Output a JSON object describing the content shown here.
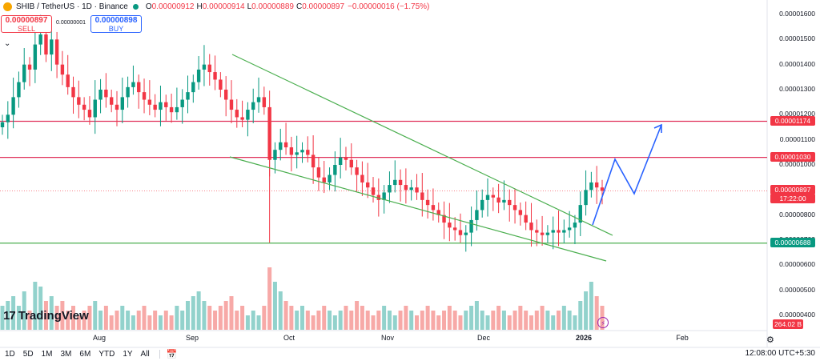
{
  "header": {
    "symbol": "SHIB / TetherUS · 1D · Binance",
    "open_label": "O",
    "open": "0.00000912",
    "high_label": "H",
    "high": "0.00000914",
    "low_label": "L",
    "low": "0.00000889",
    "close_label": "C",
    "close": "0.00000897",
    "change": "−0.00000016 (−1.75%)"
  },
  "trade": {
    "sell_price": "0.00000897",
    "sell_label": "SELL",
    "buy_price": "0.00000898",
    "buy_label": "BUY",
    "spread": "0.00000001"
  },
  "tags": {
    "resistance_high": "0.00001174",
    "resistance_low": "0.00001030",
    "current_price": "0.00000897",
    "countdown": "17:22:00",
    "support": "0.00000688",
    "volume": "264.02 B"
  },
  "brand": {
    "logo_text": "TradingView"
  },
  "timeframes": [
    "1D",
    "5D",
    "1M",
    "3M",
    "6M",
    "YTD",
    "1Y",
    "All"
  ],
  "clock": "12:08:00 UTC+5:30",
  "colors": {
    "up": "#089981",
    "down": "#f23645",
    "up_volume": "#92d2cc",
    "down_volume": "#f7a9a7",
    "resistance": "#e0315a",
    "support": "#4caf50",
    "wedge": "#4caf50",
    "projection": "#2962ff"
  },
  "chart_data": {
    "type": "candlestick",
    "y_axis_ticks": [
      "0.00001600",
      "0.00001500",
      "0.00001400",
      "0.00001300",
      "0.00001200",
      "0.00001100",
      "0.00001000",
      "0.00000900",
      "0.00000800",
      "0.00000700",
      "0.00000600",
      "0.00000500",
      "0.00000400"
    ],
    "x_axis_ticks": [
      "Aug",
      "Sep",
      "Oct",
      "Nov",
      "Dec",
      "2026",
      "Feb"
    ],
    "horizontal_levels": [
      {
        "price": 1.174e-05,
        "role": "resistance"
      },
      {
        "price": 1.03e-05,
        "role": "resistance"
      },
      {
        "price": 6.88e-06,
        "role": "support"
      }
    ],
    "close_series": [
      1.17,
      1.2,
      1.27,
      1.33,
      1.4,
      1.38,
      1.48,
      1.52,
      1.44,
      1.5,
      1.4,
      1.36,
      1.31,
      1.27,
      1.24,
      1.22,
      1.19,
      1.26,
      1.3,
      1.27,
      1.24,
      1.22,
      1.27,
      1.31,
      1.33,
      1.29,
      1.26,
      1.24,
      1.22,
      1.25,
      1.23,
      1.21,
      1.23,
      1.26,
      1.29,
      1.33,
      1.38,
      1.4,
      1.37,
      1.34,
      1.3,
      1.26,
      1.22,
      1.19,
      1.18,
      1.22,
      1.25,
      1.27,
      1.23,
      1.02,
      1.06,
      1.09,
      1.07,
      1.04,
      1.05,
      1.06,
      1.04,
      0.99,
      0.95,
      0.93,
      0.96,
      1.0,
      1.03,
      1.02,
      0.99,
      0.96,
      0.93,
      0.91,
      0.88,
      0.86,
      0.89,
      0.92,
      0.94,
      0.92,
      0.9,
      0.91,
      0.89,
      0.86,
      0.84,
      0.82,
      0.8,
      0.77,
      0.75,
      0.74,
      0.72,
      0.73,
      0.78,
      0.82,
      0.86,
      0.88,
      0.87,
      0.85,
      0.86,
      0.84,
      0.82,
      0.8,
      0.77,
      0.74,
      0.73,
      0.72,
      0.73,
      0.74,
      0.73,
      0.74,
      0.75,
      0.77,
      0.84,
      0.9,
      0.93,
      0.91,
      0.897
    ],
    "volume_series": [
      0.5,
      0.6,
      0.7,
      0.5,
      0.8,
      0.4,
      1.0,
      0.9,
      0.6,
      0.7,
      0.5,
      0.6,
      0.4,
      0.5,
      0.3,
      0.4,
      0.5,
      0.6,
      0.4,
      0.5,
      0.3,
      0.4,
      0.5,
      0.4,
      0.3,
      0.4,
      0.5,
      0.3,
      0.4,
      0.3,
      0.4,
      0.3,
      0.5,
      0.4,
      0.6,
      0.7,
      0.8,
      0.6,
      0.5,
      0.4,
      0.5,
      0.6,
      0.7,
      0.4,
      0.5,
      0.3,
      0.4,
      0.3,
      0.5,
      1.3,
      1.0,
      0.8,
      0.6,
      0.5,
      0.4,
      0.5,
      0.4,
      0.3,
      0.4,
      0.5,
      0.4,
      0.3,
      0.4,
      0.5,
      0.4,
      0.6,
      0.5,
      0.4,
      0.3,
      0.4,
      0.5,
      0.4,
      0.3,
      0.4,
      0.5,
      0.4,
      0.3,
      0.4,
      0.5,
      0.4,
      0.3,
      0.4,
      0.5,
      0.4,
      0.3,
      0.4,
      0.5,
      0.6,
      0.4,
      0.3,
      0.4,
      0.5,
      0.4,
      0.3,
      0.4,
      0.5,
      0.4,
      0.3,
      0.4,
      0.5,
      0.4,
      0.3,
      0.4,
      0.5,
      0.4,
      0.3,
      0.6,
      0.8,
      1.0,
      0.7,
      0.5
    ]
  }
}
